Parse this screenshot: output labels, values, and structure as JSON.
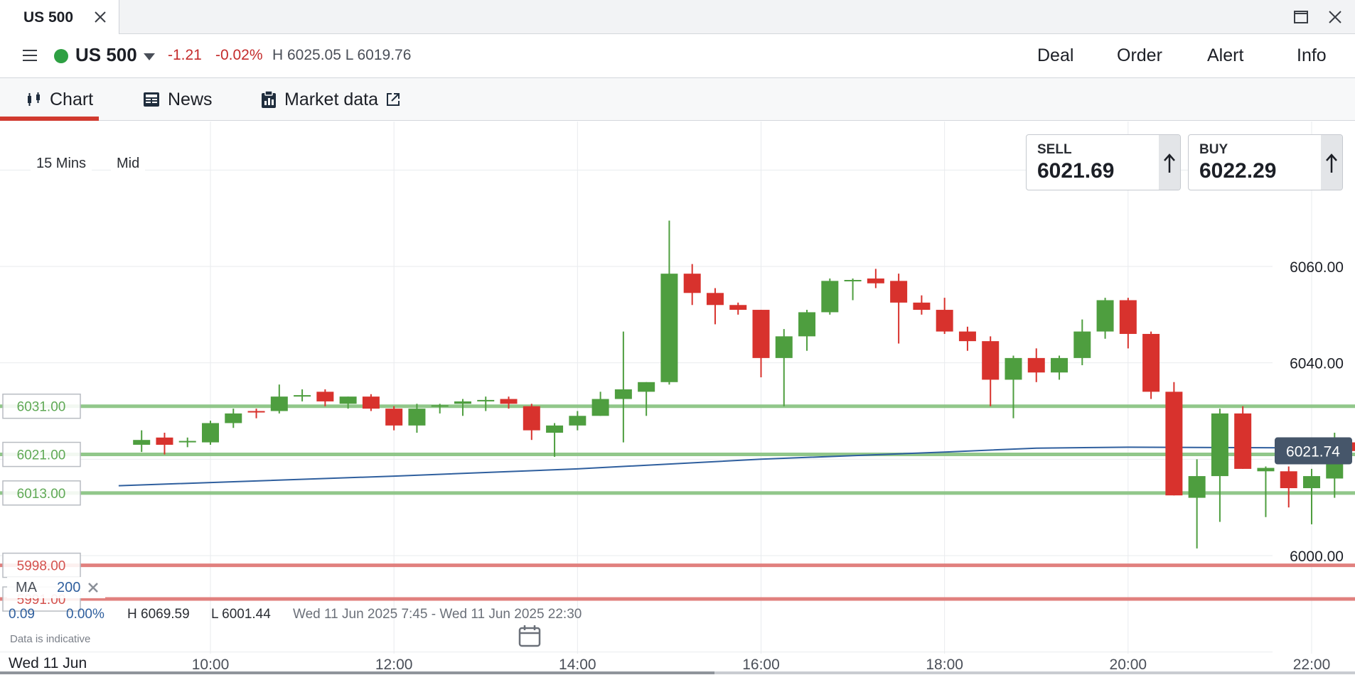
{
  "window": {
    "tab_title": "US 500"
  },
  "market": {
    "instrument": "US 500",
    "change_abs": "-1.21",
    "change_pct": "-0.02%",
    "high_low": "H 6025.05 L 6019.76",
    "actions": [
      "Deal",
      "Order",
      "Alert",
      "Info"
    ]
  },
  "tabs": [
    {
      "label": "Chart",
      "icon": "candlestick-icon",
      "active": true
    },
    {
      "label": "News",
      "icon": "newspaper-icon",
      "active": false
    },
    {
      "label": "Market data",
      "icon": "clipboard-icon",
      "active": false
    }
  ],
  "controls": {
    "interval": "15 Mins",
    "price_type": "Mid"
  },
  "quotes": {
    "sell_label": "SELL",
    "sell_price": "6021.69",
    "buy_label": "BUY",
    "buy_price": "6022.29"
  },
  "footer": {
    "ma_label": "MA",
    "ma_period": "200",
    "stat_1": "0.09",
    "stat_2": "0.00%",
    "range_high": "H 6069.59",
    "range_low": "L 6001.44",
    "period": "Wed 11 Jun 2025 7:45 - Wed 11 Jun 2025 22:30",
    "disclaimer": "Data is indicative",
    "date_label": "Wed 11 Jun"
  },
  "colors": {
    "up": "#4e9e3f",
    "down": "#d8322d",
    "ma_line": "#2f5f9e",
    "support_line": "#8cc584",
    "resistance_line": "#e07a78",
    "current_price_bg": "#46566a",
    "grid": "#e9ebee"
  },
  "chart_data": {
    "type": "candlestick",
    "interval": "15 Mins",
    "y_ticks": [
      6000,
      6040,
      6060
    ],
    "y_tick_labels": [
      "6000.00",
      "6040.00",
      "6060.00"
    ],
    "ylim": [
      5986.5,
      6081
    ],
    "x_ticks": [
      "10:00",
      "12:00",
      "14:00",
      "16:00",
      "18:00",
      "20:00",
      "22:00"
    ],
    "xlim": [
      "09:00",
      "22:30"
    ],
    "current_price": 6021.74,
    "current_price_label": "6021.74",
    "horizontal_lines": [
      {
        "value": 6031.0,
        "label": "6031.00",
        "kind": "support"
      },
      {
        "value": 6021.0,
        "label": "6021.00",
        "kind": "support"
      },
      {
        "value": 6013.0,
        "label": "6013.00",
        "kind": "support"
      },
      {
        "value": 5998.0,
        "label": "5998.00",
        "kind": "resistance"
      },
      {
        "value": 5991.0,
        "label": "5991.00",
        "kind": "resistance"
      }
    ],
    "candles": [
      {
        "t": "09:15",
        "o": 6023.0,
        "h": 6026.0,
        "l": 6021.5,
        "c": 6024.0
      },
      {
        "t": "09:30",
        "o": 6024.5,
        "h": 6025.5,
        "l": 6021.0,
        "c": 6023.0
      },
      {
        "t": "09:45",
        "o": 6023.5,
        "h": 6024.5,
        "l": 6022.5,
        "c": 6023.8
      },
      {
        "t": "10:00",
        "o": 6023.5,
        "h": 6028.0,
        "l": 6023.0,
        "c": 6027.5
      },
      {
        "t": "10:15",
        "o": 6027.5,
        "h": 6030.5,
        "l": 6026.5,
        "c": 6029.5
      },
      {
        "t": "10:30",
        "o": 6030.0,
        "h": 6030.5,
        "l": 6028.5,
        "c": 6029.7
      },
      {
        "t": "10:45",
        "o": 6030.0,
        "h": 6035.5,
        "l": 6029.5,
        "c": 6033.0
      },
      {
        "t": "11:00",
        "o": 6033.0,
        "h": 6034.5,
        "l": 6032.0,
        "c": 6033.3
      },
      {
        "t": "11:15",
        "o": 6034.0,
        "h": 6034.5,
        "l": 6031.0,
        "c": 6032.0
      },
      {
        "t": "11:30",
        "o": 6031.5,
        "h": 6033.0,
        "l": 6030.5,
        "c": 6033.0
      },
      {
        "t": "11:45",
        "o": 6033.0,
        "h": 6033.5,
        "l": 6030.0,
        "c": 6030.5
      },
      {
        "t": "12:00",
        "o": 6030.5,
        "h": 6031.0,
        "l": 6026.0,
        "c": 6027.0
      },
      {
        "t": "12:15",
        "o": 6027.0,
        "h": 6031.5,
        "l": 6025.5,
        "c": 6030.5
      },
      {
        "t": "12:30",
        "o": 6031.0,
        "h": 6031.5,
        "l": 6029.5,
        "c": 6031.2
      },
      {
        "t": "12:45",
        "o": 6031.5,
        "h": 6032.5,
        "l": 6029.0,
        "c": 6032.0
      },
      {
        "t": "13:00",
        "o": 6032.0,
        "h": 6033.0,
        "l": 6030.0,
        "c": 6032.3
      },
      {
        "t": "13:15",
        "o": 6032.5,
        "h": 6033.0,
        "l": 6030.5,
        "c": 6031.5
      },
      {
        "t": "13:30",
        "o": 6031.0,
        "h": 6031.5,
        "l": 6024.0,
        "c": 6026.0
      },
      {
        "t": "13:45",
        "o": 6025.5,
        "h": 6027.5,
        "l": 6020.5,
        "c": 6027.0
      },
      {
        "t": "14:00",
        "o": 6027.0,
        "h": 6030.0,
        "l": 6026.0,
        "c": 6029.0
      },
      {
        "t": "14:15",
        "o": 6029.0,
        "h": 6034.0,
        "l": 6029.0,
        "c": 6032.5
      },
      {
        "t": "14:30",
        "o": 6032.5,
        "h": 6046.5,
        "l": 6023.5,
        "c": 6034.5
      },
      {
        "t": "14:45",
        "o": 6034.0,
        "h": 6036.0,
        "l": 6029.0,
        "c": 6036.0
      },
      {
        "t": "15:00",
        "o": 6036.0,
        "h": 6069.5,
        "l": 6035.5,
        "c": 6058.5
      },
      {
        "t": "15:15",
        "o": 6058.5,
        "h": 6060.5,
        "l": 6052.0,
        "c": 6054.5
      },
      {
        "t": "15:30",
        "o": 6054.5,
        "h": 6055.5,
        "l": 6048.0,
        "c": 6052.0
      },
      {
        "t": "15:45",
        "o": 6052.0,
        "h": 6052.5,
        "l": 6050.0,
        "c": 6051.0
      },
      {
        "t": "16:00",
        "o": 6051.0,
        "h": 6051.0,
        "l": 6037.0,
        "c": 6041.0
      },
      {
        "t": "16:15",
        "o": 6041.0,
        "h": 6047.0,
        "l": 6031.0,
        "c": 6045.5
      },
      {
        "t": "16:30",
        "o": 6045.5,
        "h": 6051.0,
        "l": 6042.5,
        "c": 6050.5
      },
      {
        "t": "16:45",
        "o": 6050.5,
        "h": 6057.5,
        "l": 6050.0,
        "c": 6057.0
      },
      {
        "t": "17:00",
        "o": 6057.0,
        "h": 6057.5,
        "l": 6053.0,
        "c": 6057.2
      },
      {
        "t": "17:15",
        "o": 6057.5,
        "h": 6059.5,
        "l": 6055.5,
        "c": 6056.5
      },
      {
        "t": "17:30",
        "o": 6057.0,
        "h": 6058.5,
        "l": 6044.0,
        "c": 6052.5
      },
      {
        "t": "17:45",
        "o": 6052.5,
        "h": 6054.0,
        "l": 6050.0,
        "c": 6051.0
      },
      {
        "t": "18:00",
        "o": 6051.0,
        "h": 6053.5,
        "l": 6046.0,
        "c": 6046.5
      },
      {
        "t": "18:15",
        "o": 6046.5,
        "h": 6047.5,
        "l": 6042.5,
        "c": 6044.5
      },
      {
        "t": "18:30",
        "o": 6044.5,
        "h": 6045.5,
        "l": 6031.0,
        "c": 6036.5
      },
      {
        "t": "18:45",
        "o": 6036.5,
        "h": 6041.5,
        "l": 6028.5,
        "c": 6041.0
      },
      {
        "t": "19:00",
        "o": 6041.0,
        "h": 6043.0,
        "l": 6036.0,
        "c": 6038.0
      },
      {
        "t": "19:15",
        "o": 6038.0,
        "h": 6041.5,
        "l": 6036.5,
        "c": 6041.0
      },
      {
        "t": "19:30",
        "o": 6041.0,
        "h": 6049.0,
        "l": 6039.5,
        "c": 6046.5
      },
      {
        "t": "19:45",
        "o": 6046.5,
        "h": 6053.5,
        "l": 6045.0,
        "c": 6053.0
      },
      {
        "t": "20:00",
        "o": 6053.0,
        "h": 6053.5,
        "l": 6043.0,
        "c": 6046.0
      },
      {
        "t": "20:15",
        "o": 6046.0,
        "h": 6046.5,
        "l": 6032.5,
        "c": 6034.0
      },
      {
        "t": "20:30",
        "o": 6034.0,
        "h": 6036.0,
        "l": 6012.5,
        "c": 6012.5
      },
      {
        "t": "20:45",
        "o": 6012.0,
        "h": 6020.0,
        "l": 6001.5,
        "c": 6016.5
      },
      {
        "t": "21:00",
        "o": 6016.5,
        "h": 6030.5,
        "l": 6007.0,
        "c": 6029.5
      },
      {
        "t": "21:15",
        "o": 6029.5,
        "h": 6031.0,
        "l": 6018.0,
        "c": 6018.0
      },
      {
        "t": "21:30",
        "o": 6017.5,
        "h": 6018.5,
        "l": 6008.0,
        "c": 6018.2
      },
      {
        "t": "21:45",
        "o": 6017.5,
        "h": 6018.5,
        "l": 6010.0,
        "c": 6014.0
      },
      {
        "t": "22:00",
        "o": 6014.0,
        "h": 6018.0,
        "l": 6006.5,
        "c": 6016.5
      },
      {
        "t": "22:15",
        "o": 6016.0,
        "h": 6025.5,
        "l": 6012.0,
        "c": 6023.5
      },
      {
        "t": "22:30",
        "o": 6023.5,
        "h": 6025.0,
        "l": 6019.5,
        "c": 6021.7
      }
    ],
    "moving_average": {
      "name": "MA 200",
      "points": [
        {
          "t": "09:00",
          "v": 6014.5
        },
        {
          "t": "12:00",
          "v": 6016.5
        },
        {
          "t": "14:00",
          "v": 6018.0
        },
        {
          "t": "16:00",
          "v": 6020.0
        },
        {
          "t": "18:00",
          "v": 6021.5
        },
        {
          "t": "19:00",
          "v": 6022.3
        },
        {
          "t": "20:00",
          "v": 6022.5
        },
        {
          "t": "22:30",
          "v": 6022.3
        }
      ]
    }
  }
}
